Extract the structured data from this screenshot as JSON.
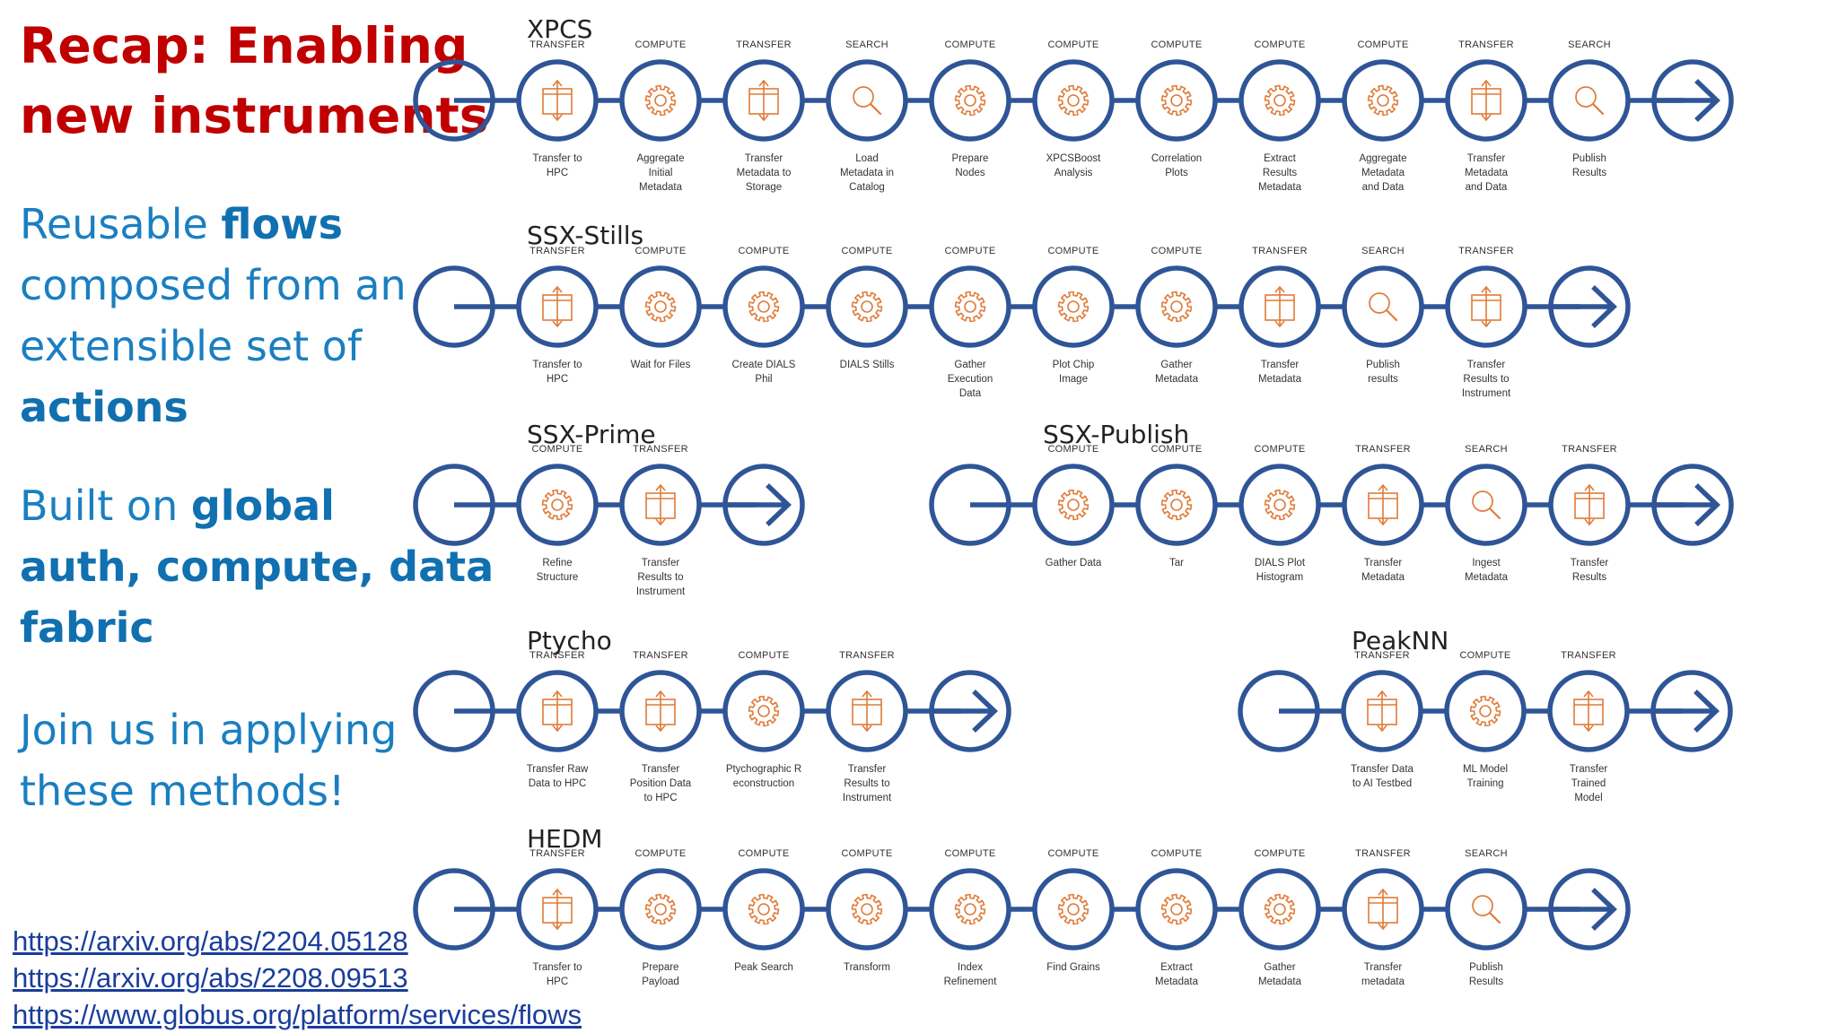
{
  "slide": {
    "title_line1": "Recap: Enabling",
    "title_line2": "new instruments",
    "bullet1": {
      "l1_pre": "Reusable ",
      "l1_bold": "flows",
      "l2": "composed from an",
      "l3": "extensible set of",
      "l4_bold": "actions"
    },
    "bullet2": {
      "l1_pre": "Built on ",
      "l1_bold": "global",
      "l2_bold": "auth, compute, data",
      "l3_bold": "fabric"
    },
    "bullet3": {
      "l1": "Join us in applying",
      "l2": "these methods!"
    },
    "links": [
      "https://arxiv.org/abs/2204.05128",
      "https://arxiv.org/abs/2208.09513",
      "https://www.globus.org/platform/services/flows"
    ]
  },
  "colors": {
    "title": "#c00000",
    "bullet": "#1a7fc1",
    "ring": "#2f5597",
    "icon": "#e07b39",
    "link": "#1a3d9c"
  },
  "flows": [
    {
      "name": "XPCS",
      "steps": [
        {
          "type": "TRANSFER",
          "icon": "transfer-icon",
          "label": [
            "Transfer to",
            "HPC"
          ]
        },
        {
          "type": "COMPUTE",
          "icon": "gear-icon",
          "label": [
            "Aggregate",
            "Initial",
            "Metadata"
          ]
        },
        {
          "type": "TRANSFER",
          "icon": "transfer-icon",
          "label": [
            "Transfer",
            "Metadata to",
            "Storage"
          ]
        },
        {
          "type": "SEARCH",
          "icon": "search-icon",
          "label": [
            "Load",
            "Metadata in",
            "Catalog"
          ]
        },
        {
          "type": "COMPUTE",
          "icon": "gear-icon",
          "label": [
            "Prepare",
            "Nodes"
          ]
        },
        {
          "type": "COMPUTE",
          "icon": "gear-icon",
          "label": [
            "XPCSBoost",
            "Analysis"
          ]
        },
        {
          "type": "COMPUTE",
          "icon": "gear-icon",
          "label": [
            "Correlation",
            "Plots"
          ]
        },
        {
          "type": "COMPUTE",
          "icon": "gear-icon",
          "label": [
            "Extract",
            "Results",
            "Metadata"
          ]
        },
        {
          "type": "COMPUTE",
          "icon": "gear-icon",
          "label": [
            "Aggregate",
            "Metadata",
            "and Data"
          ]
        },
        {
          "type": "TRANSFER",
          "icon": "transfer-icon",
          "label": [
            "Transfer",
            "Metadata",
            "and Data"
          ]
        },
        {
          "type": "SEARCH",
          "icon": "search-icon",
          "label": [
            "Publish",
            "Results"
          ]
        }
      ]
    },
    {
      "name": "SSX-Stills",
      "steps": [
        {
          "type": "TRANSFER",
          "icon": "transfer-icon",
          "label": [
            "Transfer to",
            "HPC"
          ]
        },
        {
          "type": "COMPUTE",
          "icon": "gear-icon",
          "label": [
            "Wait for Files"
          ]
        },
        {
          "type": "COMPUTE",
          "icon": "gear-icon",
          "label": [
            "Create DIALS",
            "Phil"
          ]
        },
        {
          "type": "COMPUTE",
          "icon": "gear-icon",
          "label": [
            "DIALS Stills"
          ]
        },
        {
          "type": "COMPUTE",
          "icon": "gear-icon",
          "label": [
            "Gather",
            "Execution",
            "Data"
          ]
        },
        {
          "type": "COMPUTE",
          "icon": "gear-icon",
          "label": [
            "Plot Chip",
            "Image"
          ]
        },
        {
          "type": "COMPUTE",
          "icon": "gear-icon",
          "label": [
            "Gather",
            "Metadata"
          ]
        },
        {
          "type": "TRANSFER",
          "icon": "transfer-icon",
          "label": [
            "Transfer",
            "Metadata"
          ]
        },
        {
          "type": "SEARCH",
          "icon": "search-icon",
          "label": [
            "Publish",
            "results"
          ]
        },
        {
          "type": "TRANSFER",
          "icon": "transfer-icon",
          "label": [
            "Transfer",
            "Results to",
            "Instrument"
          ]
        }
      ]
    },
    {
      "name": "SSX-Prime",
      "steps": [
        {
          "type": "COMPUTE",
          "icon": "gear-icon",
          "label": [
            "Refine",
            "Structure"
          ]
        },
        {
          "type": "TRANSFER",
          "icon": "transfer-icon",
          "label": [
            "Transfer",
            "Results to",
            "Instrument"
          ]
        }
      ]
    },
    {
      "name": "SSX-Publish",
      "steps": [
        {
          "type": "COMPUTE",
          "icon": "gear-icon",
          "label": [
            "Gather Data"
          ]
        },
        {
          "type": "COMPUTE",
          "icon": "gear-icon",
          "label": [
            "Tar"
          ]
        },
        {
          "type": "COMPUTE",
          "icon": "gear-icon",
          "label": [
            "DIALS Plot",
            "Histogram"
          ]
        },
        {
          "type": "TRANSFER",
          "icon": "transfer-icon",
          "label": [
            "Transfer",
            "Metadata"
          ]
        },
        {
          "type": "SEARCH",
          "icon": "search-icon",
          "label": [
            "Ingest",
            "Metadata"
          ]
        },
        {
          "type": "TRANSFER",
          "icon": "transfer-icon",
          "label": [
            "Transfer",
            "Results"
          ]
        }
      ]
    },
    {
      "name": "Ptycho",
      "steps": [
        {
          "type": "TRANSFER",
          "icon": "transfer-icon",
          "label": [
            "Transfer Raw",
            "Data to HPC"
          ]
        },
        {
          "type": "TRANSFER",
          "icon": "transfer-icon",
          "label": [
            "Transfer",
            "Position Data",
            "to HPC"
          ]
        },
        {
          "type": "COMPUTE",
          "icon": "gear-icon",
          "label": [
            "Ptychographic R",
            "econstruction"
          ]
        },
        {
          "type": "TRANSFER",
          "icon": "transfer-icon",
          "label": [
            "Transfer",
            "Results to",
            "Instrument"
          ]
        }
      ]
    },
    {
      "name": "PeakNN",
      "steps": [
        {
          "type": "TRANSFER",
          "icon": "transfer-icon",
          "label": [
            "Transfer Data",
            "to AI Testbed"
          ]
        },
        {
          "type": "COMPUTE",
          "icon": "gear-icon",
          "label": [
            "ML Model",
            "Training"
          ]
        },
        {
          "type": "TRANSFER",
          "icon": "transfer-icon",
          "label": [
            "Transfer",
            "Trained",
            "Model"
          ]
        }
      ]
    },
    {
      "name": "HEDM",
      "steps": [
        {
          "type": "TRANSFER",
          "icon": "transfer-icon",
          "label": [
            "Transfer to",
            "HPC"
          ]
        },
        {
          "type": "COMPUTE",
          "icon": "gear-icon",
          "label": [
            "Prepare",
            "Payload"
          ]
        },
        {
          "type": "COMPUTE",
          "icon": "gear-icon",
          "label": [
            "Peak Search"
          ]
        },
        {
          "type": "COMPUTE",
          "icon": "gear-icon",
          "label": [
            "Transform"
          ]
        },
        {
          "type": "COMPUTE",
          "icon": "gear-icon",
          "label": [
            "Index",
            "Refinement"
          ]
        },
        {
          "type": "COMPUTE",
          "icon": "gear-icon",
          "label": [
            "Find Grains"
          ]
        },
        {
          "type": "COMPUTE",
          "icon": "gear-icon",
          "label": [
            "Extract",
            "Metadata"
          ]
        },
        {
          "type": "COMPUTE",
          "icon": "gear-icon",
          "label": [
            "Gather",
            "Metadata"
          ]
        },
        {
          "type": "TRANSFER",
          "icon": "transfer-icon",
          "label": [
            "Transfer",
            "metadata"
          ]
        },
        {
          "type": "SEARCH",
          "icon": "search-icon",
          "label": [
            "Publish",
            "Results"
          ]
        }
      ]
    }
  ]
}
